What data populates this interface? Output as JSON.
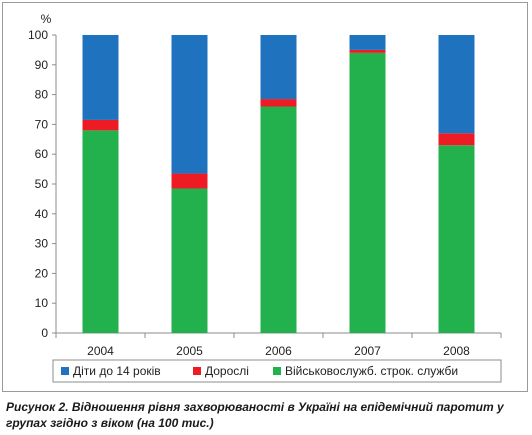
{
  "chart_data": {
    "type": "bar",
    "stacked": true,
    "unit_label": "%",
    "categories": [
      "2004",
      "2005",
      "2006",
      "2007",
      "2008"
    ],
    "series": [
      {
        "name": "Військовослужб. строк. служби",
        "color": "#22b14c",
        "values": [
          68,
          48.5,
          76,
          94,
          63
        ]
      },
      {
        "name": "Дорослі",
        "color": "#ed1c24",
        "values": [
          3.5,
          5,
          2.5,
          1,
          4
        ]
      },
      {
        "name": "Діти до 14 років",
        "color": "#1f73be",
        "values": [
          28.5,
          46.5,
          21.5,
          5,
          33
        ]
      }
    ],
    "legend_order": [
      "Діти до 14 років",
      "Дорослі",
      "Військовослужб. строк. служби"
    ],
    "ylim": [
      0,
      100
    ],
    "yticks": [
      0,
      10,
      20,
      30,
      40,
      50,
      60,
      70,
      80,
      90,
      100
    ],
    "grid": false,
    "legend_position": "bottom",
    "caption": "Рисунок 2. Відношення рівня захворюваності в Україні на епідемічний паротит у групах згідно з віком (на 100 тис.)"
  }
}
